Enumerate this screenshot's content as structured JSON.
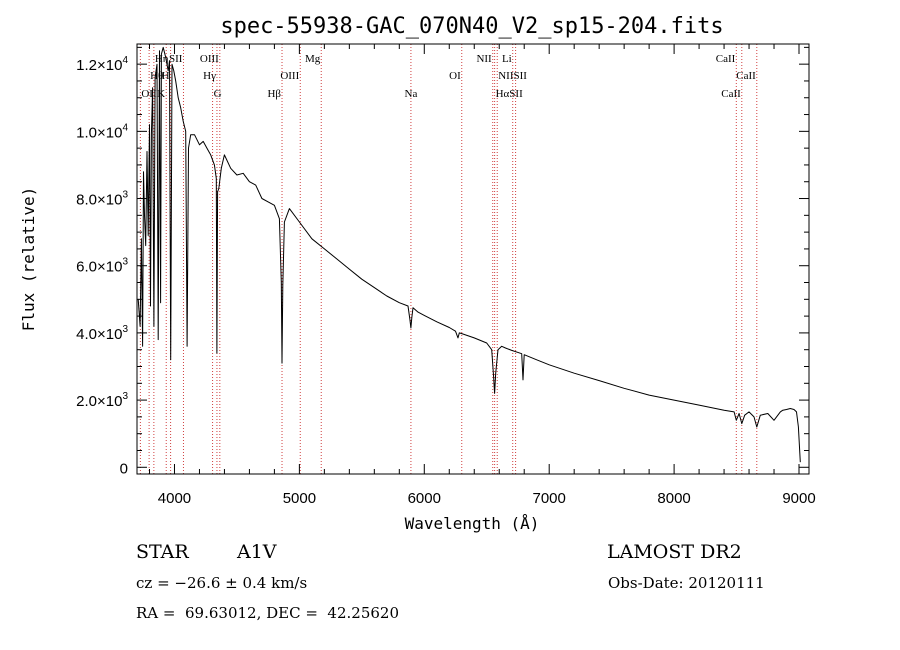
{
  "chart_data": {
    "type": "line",
    "title": "spec-55938-GAC_070N40_V2_sp15-204.fits",
    "xlabel": "Wavelength (Å)",
    "ylabel": "Flux (relative)",
    "xlim": [
      3700,
      9080
    ],
    "ylim": [
      -200,
      12600
    ],
    "xticks": [
      {
        "value": 4000,
        "label": "4000"
      },
      {
        "value": 5000,
        "label": "5000"
      },
      {
        "value": 6000,
        "label": "6000"
      },
      {
        "value": 7000,
        "label": "7000"
      },
      {
        "value": 8000,
        "label": "8000"
      },
      {
        "value": 9000,
        "label": "9000"
      }
    ],
    "yticks": [
      {
        "value": 0,
        "mantissa": "0",
        "exponent": ""
      },
      {
        "value": 2000,
        "mantissa": "2.0×10",
        "exponent": "3"
      },
      {
        "value": 4000,
        "mantissa": "4.0×10",
        "exponent": "3"
      },
      {
        "value": 6000,
        "mantissa": "6.0×10",
        "exponent": "3"
      },
      {
        "value": 8000,
        "mantissa": "8.0×10",
        "exponent": "3"
      },
      {
        "value": 10000,
        "mantissa": "1.0×10",
        "exponent": "4"
      },
      {
        "value": 12000,
        "mantissa": "1.2×10",
        "exponent": "4"
      }
    ],
    "series": [
      {
        "name": "spectrum",
        "x": [
          3710,
          3725,
          3735,
          3745,
          3752,
          3760,
          3770,
          3780,
          3790,
          3800,
          3808,
          3815,
          3825,
          3835,
          3845,
          3860,
          3870,
          3880,
          3889,
          3895,
          3910,
          3930,
          3950,
          3960,
          3970,
          3980,
          3995,
          4010,
          4030,
          4050,
          4070,
          4090,
          4101,
          4112,
          4130,
          4160,
          4200,
          4230,
          4260,
          4290,
          4320,
          4335,
          4340,
          4345,
          4355,
          4375,
          4400,
          4450,
          4500,
          4550,
          4600,
          4650,
          4700,
          4750,
          4800,
          4840,
          4855,
          4861,
          4867,
          4880,
          4920,
          5000,
          5100,
          5200,
          5300,
          5400,
          5500,
          5600,
          5700,
          5800,
          5870,
          5885,
          5893,
          5900,
          5910,
          5950,
          6000,
          6100,
          6200,
          6250,
          6270,
          6280,
          6300,
          6400,
          6500,
          6540,
          6555,
          6563,
          6572,
          6590,
          6620,
          6650,
          6700,
          6780,
          6790,
          6800,
          6900,
          7000,
          7200,
          7400,
          7600,
          7800,
          8000,
          8200,
          8400,
          8480,
          8498,
          8520,
          8542,
          8565,
          8600,
          8640,
          8662,
          8690,
          8750,
          8800,
          8850,
          8870,
          8900,
          8930,
          8960,
          8980,
          8995,
          9010
        ],
        "values": [
          5000,
          4200,
          6800,
          3600,
          8800,
          7500,
          6600,
          9400,
          6900,
          10200,
          4800,
          9900,
          11300,
          4200,
          11600,
          12000,
          3800,
          12400,
          4900,
          12300,
          12500,
          12200,
          11800,
          12100,
          3200,
          12000,
          11800,
          11500,
          11000,
          10700,
          10300,
          10000,
          3600,
          9500,
          9900,
          9900,
          9600,
          9700,
          9500,
          9300,
          9000,
          8600,
          3400,
          8200,
          8300,
          8900,
          9300,
          8900,
          8700,
          8750,
          8500,
          8400,
          8000,
          7900,
          7800,
          7400,
          5500,
          3100,
          5400,
          7300,
          7700,
          7300,
          6800,
          6500,
          6200,
          5900,
          5600,
          5350,
          5100,
          4900,
          4800,
          4400,
          4150,
          4450,
          4750,
          4620,
          4520,
          4330,
          4160,
          4050,
          3850,
          4000,
          3980,
          3850,
          3700,
          3500,
          2700,
          2200,
          2800,
          3500,
          3600,
          3550,
          3480,
          3380,
          2600,
          3350,
          3200,
          3050,
          2800,
          2580,
          2350,
          2150,
          2000,
          1850,
          1700,
          1650,
          1400,
          1600,
          1300,
          1550,
          1650,
          1500,
          1200,
          1550,
          1600,
          1400,
          1650,
          1700,
          1720,
          1750,
          1720,
          1650,
          1200,
          150
        ]
      }
    ],
    "line_markers": [
      {
        "label": "Hη",
        "x": 3835,
        "row": 0,
        "side": "right"
      },
      {
        "label": "Hθ",
        "x": 3797,
        "row": 1,
        "side": "right"
      },
      {
        "label": "OII",
        "x": 3727,
        "row": 2,
        "side": "right"
      },
      {
        "label": "SII",
        "x": 4072,
        "row": 0,
        "side": "left"
      },
      {
        "label": "H",
        "x": 3969,
        "row": 1,
        "side": "left"
      },
      {
        "label": "K",
        "x": 3934,
        "row": 2,
        "side": "left"
      },
      {
        "label": "OIII",
        "x": 4363,
        "row": 0,
        "side": "left"
      },
      {
        "label": "Hγ",
        "x": 4340,
        "row": 1,
        "side": "left"
      },
      {
        "label": "G",
        "x": 4305,
        "row": 2,
        "side": "right"
      },
      {
        "label": "Hβ",
        "x": 4861,
        "row": 2,
        "side": "left"
      },
      {
        "label": "OIII",
        "x": 5007,
        "row": 1,
        "side": "left"
      },
      {
        "label": "Mg",
        "x": 5175,
        "row": 0,
        "side": "left"
      },
      {
        "label": "Na",
        "x": 5893,
        "row": 2,
        "side": "center"
      },
      {
        "label": "OI",
        "x": 6300,
        "row": 1,
        "side": "left"
      },
      {
        "label": "NII",
        "x": 6548,
        "row": 0,
        "side": "left"
      },
      {
        "label": "Li",
        "x": 6708,
        "row": 0,
        "side": "left"
      },
      {
        "label": "NIISII",
        "x": 6584,
        "row": 1,
        "side": "right"
      },
      {
        "label": "HαSII",
        "x": 6563,
        "row": 2,
        "side": "right"
      },
      {
        "label": "SII",
        "x": 6731,
        "row": 99,
        "side": "none"
      },
      {
        "label": "CaII",
        "x": 8498,
        "row": 0,
        "side": "left"
      },
      {
        "label": "CaII",
        "x": 8542,
        "row": 2,
        "side": "left"
      },
      {
        "label": "CaII",
        "x": 8662,
        "row": 1,
        "side": "left"
      }
    ]
  },
  "info": {
    "object_class": "STAR",
    "subclass": "A1V",
    "survey": "LAMOST DR2",
    "cz": "cz = −26.6 ± 0.4 km/s",
    "obs_date": "Obs-Date: 20120111",
    "coords": "RA =  69.63012, DEC =  42.25620"
  }
}
